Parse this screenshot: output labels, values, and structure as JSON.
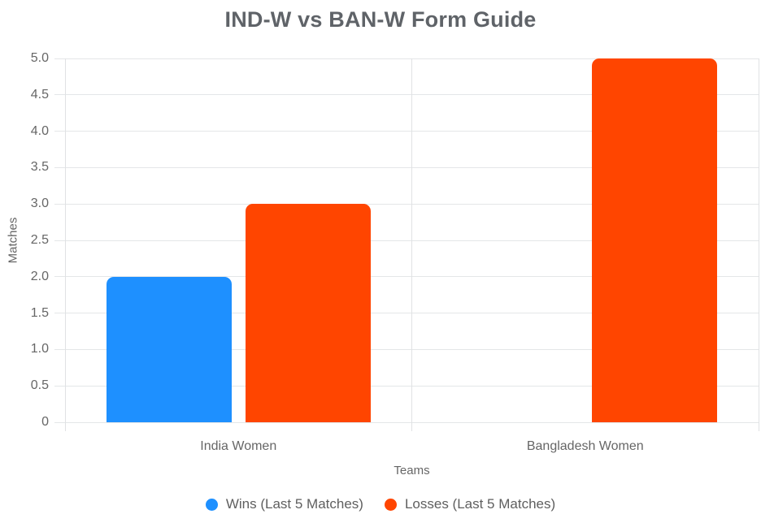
{
  "chart_data": {
    "type": "bar",
    "title": "IND-W vs BAN-W Form Guide",
    "categories": [
      "India Women",
      "Bangladesh Women"
    ],
    "series": [
      {
        "name": "Wins (Last 5 Matches)",
        "color": "#1E90FF",
        "values": [
          2,
          0
        ]
      },
      {
        "name": "Losses (Last 5 Matches)",
        "color": "#FF4500",
        "values": [
          3,
          5
        ]
      }
    ],
    "xlabel": "Teams",
    "ylabel": "Matches",
    "ylim": [
      0,
      5
    ],
    "ytick_step": 0.5,
    "ytick_labels": [
      "0",
      "0.5",
      "1.0",
      "1.5",
      "2.0",
      "2.5",
      "3.0",
      "3.5",
      "4.0",
      "4.5",
      "5.0"
    ],
    "grid": true,
    "legend_position": "bottom",
    "grid_color": "#e4e6e8",
    "text_color": "#666666",
    "title_color": "#5f6368"
  }
}
